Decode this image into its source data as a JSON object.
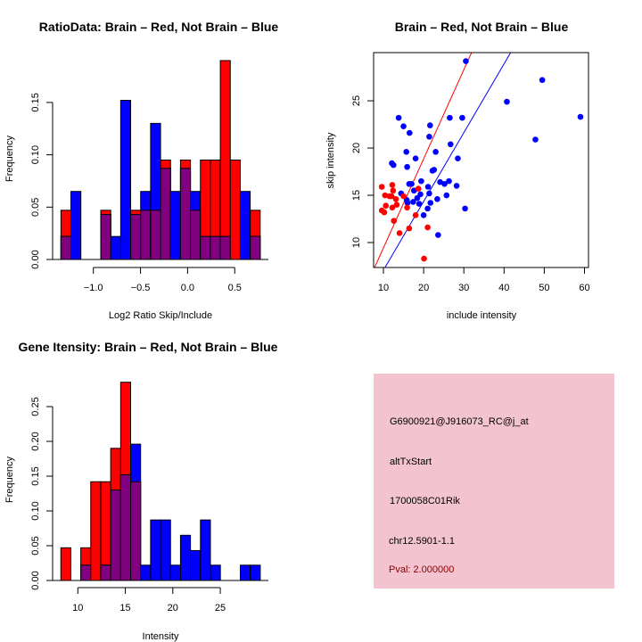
{
  "colors": {
    "red": "#ff0000",
    "blue": "#0000ff",
    "overlap": "#800080",
    "panel": "#f3c3cf",
    "pval": "#8b0000"
  },
  "chart_data": [
    {
      "type": "bar",
      "subtype": "overlaid-histogram",
      "title": "RatioData: Brain – Red, Not Brain – Blue",
      "xlabel": "Log2 Ratio Skip/Include",
      "ylabel": "Frequency",
      "bin_start": -1.344,
      "bin_width": 0.1057,
      "xticks": [
        -1.0,
        -0.5,
        0.0,
        0.5
      ],
      "xtick_labels": [
        "−1.0",
        "−0.5",
        "0.0",
        "0.5"
      ],
      "yticks": [
        0,
        0.05,
        0.1,
        0.15
      ],
      "ytick_labels": [
        "0.00",
        "0.05",
        "0.10",
        "0.15"
      ],
      "series": [
        {
          "name": "Brain",
          "color": "red",
          "values": [
            0.047,
            0,
            0,
            0,
            0.047,
            0,
            0,
            0.047,
            0.047,
            0.047,
            0.095,
            0,
            0.095,
            0.047,
            0.095,
            0.095,
            0.19,
            0.095,
            0,
            0.047
          ]
        },
        {
          "name": "Not Brain",
          "color": "blue",
          "values": [
            0.022,
            0.065,
            0,
            0,
            0.043,
            0.022,
            0.152,
            0.043,
            0.065,
            0.13,
            0.087,
            0.065,
            0.087,
            0.065,
            0.022,
            0.022,
            0.022,
            0,
            0.065,
            0.022
          ]
        }
      ]
    },
    {
      "type": "scatter",
      "title": "Brain – Red, Not Brain – Blue",
      "xlabel": "include intensity",
      "ylabel": "skip intensity",
      "xlim": [
        7.56,
        61
      ],
      "ylim": [
        7.36,
        30.1
      ],
      "xticks": [
        10,
        20,
        30,
        40,
        50,
        60
      ],
      "xtick_labels": [
        "10",
        "20",
        "30",
        "40",
        "50",
        "60"
      ],
      "yticks": [
        10,
        15,
        20,
        25
      ],
      "ytick_labels": [
        "10",
        "15",
        "20",
        "25"
      ],
      "series": [
        {
          "name": "Brain",
          "color": "red",
          "points": [
            [
              9.6,
              15.9
            ],
            [
              9.6,
              13.4
            ],
            [
              10.2,
              13.2
            ],
            [
              10.4,
              15.0
            ],
            [
              10.6,
              13.9
            ],
            [
              11.5,
              14.9
            ],
            [
              12.0,
              14.9
            ],
            [
              12.2,
              16.1
            ],
            [
              12.2,
              13.7
            ],
            [
              12.4,
              15.5
            ],
            [
              12.6,
              12.3
            ],
            [
              13.1,
              14.6
            ],
            [
              13.3,
              14.0
            ],
            [
              14.0,
              11.0
            ],
            [
              15.0,
              14.9
            ],
            [
              15.9,
              13.7
            ],
            [
              16.4,
              11.5
            ],
            [
              18.0,
              12.9
            ],
            [
              18.7,
              15.7
            ],
            [
              20.1,
              8.3
            ],
            [
              21.0,
              11.6
            ]
          ],
          "fit_line": {
            "slope": 0.943,
            "intercept": 0.0
          }
        },
        {
          "name": "Not Brain",
          "color": "blue",
          "points": [
            [
              13.8,
              23.2
            ],
            [
              15.0,
              22.3
            ],
            [
              16.5,
              21.6
            ],
            [
              21.6,
              22.4
            ],
            [
              21.4,
              21.2
            ],
            [
              15.7,
              19.6
            ],
            [
              18.0,
              18.9
            ],
            [
              12.1,
              18.4
            ],
            [
              12.5,
              18.2
            ],
            [
              15.9,
              18.0
            ],
            [
              23.0,
              19.6
            ],
            [
              26.5,
              23.2
            ],
            [
              29.6,
              23.2
            ],
            [
              26.7,
              20.4
            ],
            [
              28.5,
              18.9
            ],
            [
              30.5,
              29.2
            ],
            [
              40.7,
              24.9
            ],
            [
              49.5,
              27.2
            ],
            [
              59.0,
              23.3
            ],
            [
              47.8,
              20.9
            ],
            [
              22.2,
              17.6
            ],
            [
              22.6,
              17.7
            ],
            [
              19.4,
              16.5
            ],
            [
              17.0,
              16.2
            ],
            [
              16.4,
              16.2
            ],
            [
              24.1,
              16.4
            ],
            [
              25.2,
              16.2
            ],
            [
              26.3,
              16.5
            ],
            [
              28.2,
              16.0
            ],
            [
              21.1,
              15.9
            ],
            [
              14.4,
              15.2
            ],
            [
              17.6,
              15.5
            ],
            [
              21.4,
              15.2
            ],
            [
              19.2,
              15.1
            ],
            [
              18.4,
              14.7
            ],
            [
              15.8,
              14.5
            ],
            [
              17.4,
              14.3
            ],
            [
              16.0,
              14.2
            ],
            [
              18.9,
              14.1
            ],
            [
              21.7,
              14.2
            ],
            [
              23.4,
              14.6
            ],
            [
              25.7,
              15.0
            ],
            [
              21.0,
              13.6
            ],
            [
              30.3,
              13.6
            ],
            [
              20.0,
              12.9
            ],
            [
              23.6,
              10.8
            ]
          ],
          "fit_line": {
            "slope": 0.728,
            "intercept": -0.21
          }
        }
      ]
    },
    {
      "type": "bar",
      "subtype": "overlaid-histogram",
      "title": "Gene Itensity: Brain – Red, Not Brain – Blue",
      "xlabel": "Intensity",
      "ylabel": "Frequency",
      "bin_start": 8.21,
      "bin_width": 1.05,
      "xticks": [
        10,
        15,
        20,
        25
      ],
      "xtick_labels": [
        "10",
        "15",
        "20",
        "25"
      ],
      "yticks": [
        0,
        0.05,
        0.1,
        0.15,
        0.2,
        0.25
      ],
      "ytick_labels": [
        "0.00",
        "0.05",
        "0.10",
        "0.15",
        "0.20",
        "0.25"
      ],
      "series": [
        {
          "name": "Brain",
          "color": "red",
          "values": [
            0.047,
            0,
            0.047,
            0.142,
            0.142,
            0.19,
            0.285,
            0.142,
            0,
            0,
            0,
            0,
            0,
            0,
            0,
            0,
            0,
            0,
            0,
            0
          ]
        },
        {
          "name": "Not Brain",
          "color": "blue",
          "values": [
            0,
            0,
            0.022,
            0,
            0.022,
            0.13,
            0.152,
            0.196,
            0.022,
            0.087,
            0.087,
            0.022,
            0.065,
            0.043,
            0.087,
            0.022,
            0,
            0,
            0.022,
            0.022
          ]
        }
      ]
    }
  ],
  "info_panel": {
    "probe": "G6900921@J916073_RC@j_at",
    "event": "altTxStart",
    "gene": "1700058C01Rik",
    "locus": "chr12.5901-1.1",
    "pval": "Pval: 2.000000"
  }
}
